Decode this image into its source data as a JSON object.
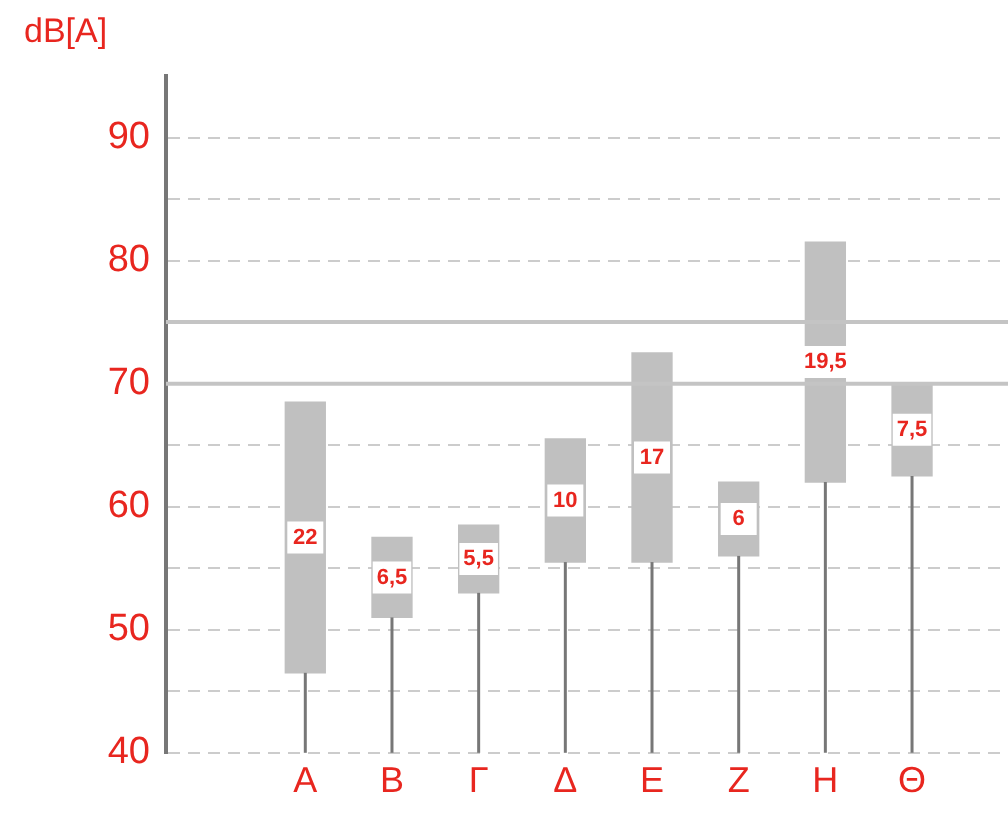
{
  "chart_data": {
    "type": "bar",
    "ylabel": "dB[A]",
    "categories": [
      "Α",
      "Β",
      "Γ",
      "Δ",
      "Ε",
      "Ζ",
      "Η",
      "Θ"
    ],
    "base": [
      46.5,
      51,
      53,
      55.5,
      55.5,
      56,
      62,
      62.5
    ],
    "values": [
      22,
      6.5,
      5.5,
      10,
      17,
      6,
      19.5,
      7.5
    ],
    "value_labels": [
      "22",
      "6,5",
      "5,5",
      "10",
      "17",
      "6",
      "19,5",
      "7,5"
    ],
    "color": "#c0c0c0",
    "ylim": [
      40,
      95
    ],
    "yticks": [
      40,
      {
        "value": 45,
        "label": null
      },
      50,
      {
        "value": 55,
        "label": null
      },
      60,
      {
        "value": 65,
        "label": null
      },
      70,
      80,
      {
        "value": 85,
        "label": null
      },
      90
    ],
    "grid": "y",
    "ref_lines": [
      {
        "axis": "y",
        "value": 70,
        "color": "#c4c4c4",
        "line_style": "solid"
      },
      {
        "axis": "y",
        "value": 75,
        "color": "#c4c4c4",
        "line_style": "solid"
      }
    ],
    "legend": false
  }
}
